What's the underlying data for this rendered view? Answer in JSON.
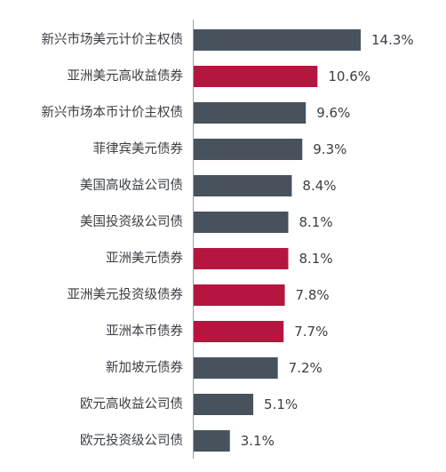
{
  "chart_data": {
    "type": "bar",
    "orientation": "horizontal",
    "categories": [
      "新兴市场美元计价主权债",
      "亚洲美元高收益债券",
      "新兴市场本币计价主权债",
      "菲律宾美元债券",
      "美国高收益公司债",
      "美国投资级公司债",
      "亚洲美元债券",
      "亚洲美元投资级债券",
      "亚洲本币债券",
      "新加坡元债券",
      "欧元高收益公司债",
      "欧元投资级公司债"
    ],
    "values": [
      14.3,
      10.6,
      9.6,
      9.3,
      8.4,
      8.1,
      8.1,
      7.8,
      7.7,
      7.2,
      5.1,
      3.1
    ],
    "value_labels": [
      "14.3%",
      "10.6%",
      "9.6%",
      "9.3%",
      "8.4%",
      "8.1%",
      "8.1%",
      "7.8%",
      "7.7%",
      "7.2%",
      "5.1%",
      "3.1%"
    ],
    "highlight": [
      false,
      true,
      false,
      false,
      false,
      false,
      true,
      true,
      true,
      false,
      false,
      false
    ],
    "colors": {
      "default": "#47525c",
      "highlight": "#b5163f",
      "axis": "#9aa0a6",
      "text": "#3a3f45"
    },
    "xlim": [
      0,
      14.3
    ],
    "title": "",
    "xlabel": "",
    "ylabel": "",
    "grid": false,
    "legend": "none"
  }
}
